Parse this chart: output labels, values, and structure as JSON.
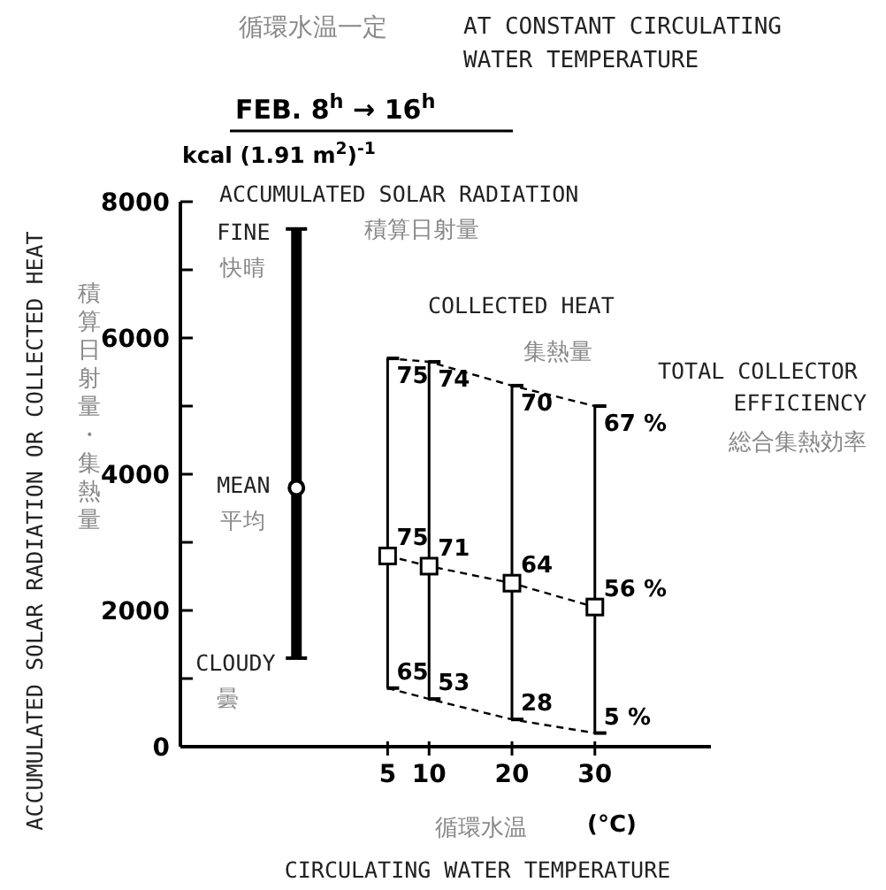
{
  "chart_data": {
    "type": "line",
    "title": "AT CONSTANT CIRCULATING WATER TEMPERATURE",
    "subtitle": "FEB.  8$^{h}$ → 16$^{h}$",
    "xlabel": "CIRCULATING WATER TEMPERATURE",
    "ylabel": "ACCUMULATED SOLAR RADIATION OR COLLECTED HEAT",
    "xlim": [
      -20,
      44
    ],
    "xticks": [
      5,
      10,
      20,
      30
    ],
    "ylim": [
      0,
      8000
    ],
    "yticks": [
      0,
      {
        "value": 1000,
        "label": null
      },
      2000,
      {
        "value": 3000,
        "label": null
      },
      4000,
      {
        "value": 5000,
        "label": null
      },
      6000,
      {
        "value": 7000,
        "label": null
      },
      8000
    ],
    "series": [
      {
        "type": "scatter",
        "color": "#000000",
        "marker": "circle",
        "x": [
          -6
        ],
        "values": [
          3800
        ],
        "errors": [
          [
            1300,
            7600
          ]
        ]
      },
      {
        "type": "line",
        "color": "#000000",
        "marker": "square",
        "line_style": "dashed",
        "x": [
          5,
          10,
          20,
          30
        ],
        "values": [
          2800,
          2650,
          2400,
          2050
        ],
        "errors": [
          [
            860,
            5700
          ],
          [
            700,
            5650
          ],
          [
            400,
            5300
          ],
          [
            200,
            5000
          ]
        ]
      },
      {
        "type": "line",
        "color": "#000000",
        "marker": "none",
        "line_style": "dashed",
        "x": [
          5,
          10,
          20,
          30
        ],
        "values": [
          5700,
          5650,
          5300,
          5000
        ]
      },
      {
        "type": "line",
        "color": "#000000",
        "marker": "none",
        "line_style": "dashed",
        "x": [
          5,
          10,
          20,
          30
        ],
        "values": [
          860,
          700,
          400,
          200
        ]
      }
    ],
    "annotations": [
      "循環水温一定",
      "kcal (1.91 m$^{2}$)$^{-1}$",
      "ACCUMULATED SOLAR RADIATION",
      "積算日射量",
      "COLLECTED HEAT",
      "集熱量",
      "TOTAL COLLECTOR",
      "EFFICIENCY",
      "総合集熱効率",
      "積算日射量・集熱量",
      "循環水温",
      "(°C)",
      {
        "text": "FINE",
        "x": -6,
        "y": 7600
      },
      {
        "text": "快晴",
        "x": -6,
        "y": 7600
      },
      {
        "text": "MEAN",
        "x": -6,
        "y": 3800
      },
      {
        "text": "平均",
        "x": -6,
        "y": 3800
      },
      {
        "text": "CLOUDY",
        "x": -6,
        "y": 1300
      },
      {
        "text": "曇",
        "x": -6,
        "y": 1300
      },
      {
        "text": "75",
        "x": 5,
        "y": 5700
      },
      {
        "text": "74",
        "x": 10,
        "y": 5650
      },
      {
        "text": "70",
        "x": 20,
        "y": 5300
      },
      {
        "text": "67 %",
        "x": 30,
        "y": 5000
      },
      {
        "text": "75",
        "x": 5,
        "y": 2800
      },
      {
        "text": "71",
        "x": 10,
        "y": 2650
      },
      {
        "text": "64",
        "x": 20,
        "y": 2400
      },
      {
        "text": "56 %",
        "x": 30,
        "y": 2050
      },
      {
        "text": "65",
        "x": 5,
        "y": 860
      },
      {
        "text": "53",
        "x": 10,
        "y": 700
      },
      {
        "text": "28",
        "x": 20,
        "y": 400
      },
      {
        "text": "5 %",
        "x": 30,
        "y": 200
      }
    ]
  }
}
